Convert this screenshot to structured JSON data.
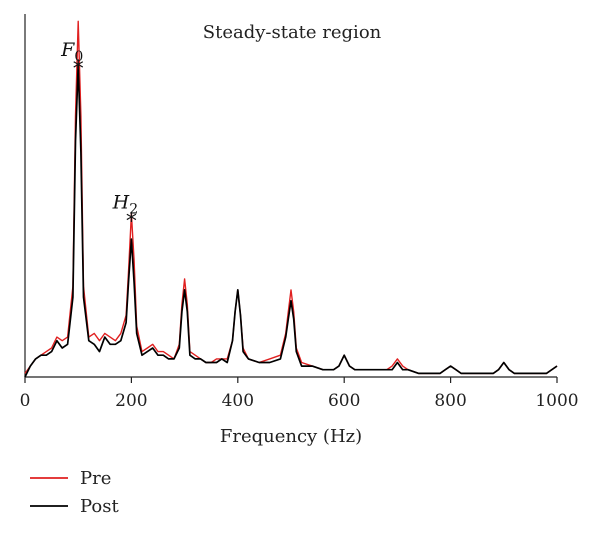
{
  "chart_data": {
    "type": "line",
    "title": "Steady-state region",
    "xlabel": "Frequency (Hz)",
    "ylabel": "",
    "xlim": [
      0,
      1000
    ],
    "ylim": [
      0,
      1.0
    ],
    "x_ticks": [
      0,
      200,
      400,
      600,
      800,
      1000
    ],
    "grid": false,
    "legend_position": "bottom-left",
    "annotations": [
      {
        "label": "F",
        "subscript": "0",
        "marker": "*",
        "x": 100,
        "y": 0.84
      },
      {
        "label": "H",
        "subscript": "2",
        "marker": "*",
        "x": 200,
        "y": 0.42
      }
    ],
    "series": [
      {
        "name": "Pre",
        "color": "#e02020",
        "x": [
          0,
          10,
          20,
          30,
          40,
          50,
          60,
          70,
          80,
          90,
          95,
          100,
          105,
          110,
          120,
          130,
          140,
          150,
          160,
          170,
          180,
          190,
          195,
          200,
          205,
          210,
          220,
          230,
          240,
          250,
          260,
          270,
          280,
          290,
          295,
          300,
          305,
          310,
          320,
          330,
          340,
          350,
          360,
          370,
          380,
          390,
          395,
          400,
          405,
          410,
          420,
          440,
          460,
          480,
          490,
          495,
          500,
          505,
          510,
          520,
          540,
          560,
          580,
          590,
          600,
          610,
          620,
          640,
          660,
          680,
          690,
          700,
          710,
          720,
          740,
          760,
          780,
          790,
          800,
          810,
          820,
          840,
          860,
          880,
          890,
          900,
          910,
          920,
          940,
          960,
          980,
          1000
        ],
        "y": [
          0.01,
          0.03,
          0.05,
          0.06,
          0.07,
          0.08,
          0.11,
          0.1,
          0.11,
          0.25,
          0.72,
          0.98,
          0.72,
          0.25,
          0.11,
          0.12,
          0.1,
          0.12,
          0.11,
          0.1,
          0.12,
          0.17,
          0.3,
          0.45,
          0.32,
          0.14,
          0.07,
          0.08,
          0.09,
          0.07,
          0.07,
          0.06,
          0.05,
          0.09,
          0.2,
          0.27,
          0.2,
          0.07,
          0.06,
          0.05,
          0.04,
          0.04,
          0.05,
          0.05,
          0.05,
          0.1,
          0.18,
          0.24,
          0.17,
          0.08,
          0.05,
          0.04,
          0.05,
          0.06,
          0.12,
          0.18,
          0.24,
          0.18,
          0.08,
          0.04,
          0.03,
          0.02,
          0.02,
          0.03,
          0.06,
          0.03,
          0.02,
          0.02,
          0.02,
          0.02,
          0.03,
          0.05,
          0.03,
          0.02,
          0.01,
          0.01,
          0.01,
          0.02,
          0.03,
          0.02,
          0.01,
          0.01,
          0.01,
          0.01,
          0.02,
          0.04,
          0.02,
          0.01,
          0.01,
          0.01,
          0.01,
          0.03
        ]
      },
      {
        "name": "Post",
        "color": "#000000",
        "x": [
          0,
          10,
          20,
          30,
          40,
          50,
          60,
          70,
          80,
          90,
          95,
          100,
          105,
          110,
          120,
          130,
          140,
          150,
          160,
          170,
          180,
          190,
          195,
          200,
          205,
          210,
          220,
          230,
          240,
          250,
          260,
          270,
          280,
          290,
          295,
          300,
          305,
          310,
          320,
          330,
          340,
          350,
          360,
          370,
          380,
          390,
          395,
          400,
          405,
          410,
          420,
          440,
          460,
          480,
          490,
          495,
          500,
          505,
          510,
          520,
          540,
          560,
          580,
          590,
          600,
          610,
          620,
          640,
          660,
          680,
          690,
          700,
          710,
          720,
          740,
          760,
          780,
          790,
          800,
          810,
          820,
          840,
          860,
          880,
          890,
          900,
          910,
          920,
          940,
          960,
          980,
          1000
        ],
        "y": [
          0.0,
          0.03,
          0.05,
          0.06,
          0.06,
          0.07,
          0.1,
          0.08,
          0.09,
          0.22,
          0.65,
          0.86,
          0.62,
          0.22,
          0.1,
          0.09,
          0.07,
          0.11,
          0.09,
          0.09,
          0.1,
          0.15,
          0.27,
          0.38,
          0.26,
          0.12,
          0.06,
          0.07,
          0.08,
          0.06,
          0.06,
          0.05,
          0.05,
          0.08,
          0.18,
          0.24,
          0.18,
          0.06,
          0.05,
          0.05,
          0.04,
          0.04,
          0.04,
          0.05,
          0.04,
          0.1,
          0.18,
          0.24,
          0.17,
          0.07,
          0.05,
          0.04,
          0.04,
          0.05,
          0.11,
          0.16,
          0.21,
          0.16,
          0.07,
          0.03,
          0.03,
          0.02,
          0.02,
          0.03,
          0.06,
          0.03,
          0.02,
          0.02,
          0.02,
          0.02,
          0.02,
          0.04,
          0.02,
          0.02,
          0.01,
          0.01,
          0.01,
          0.02,
          0.03,
          0.02,
          0.01,
          0.01,
          0.01,
          0.01,
          0.02,
          0.04,
          0.02,
          0.01,
          0.01,
          0.01,
          0.01,
          0.03
        ]
      }
    ]
  }
}
